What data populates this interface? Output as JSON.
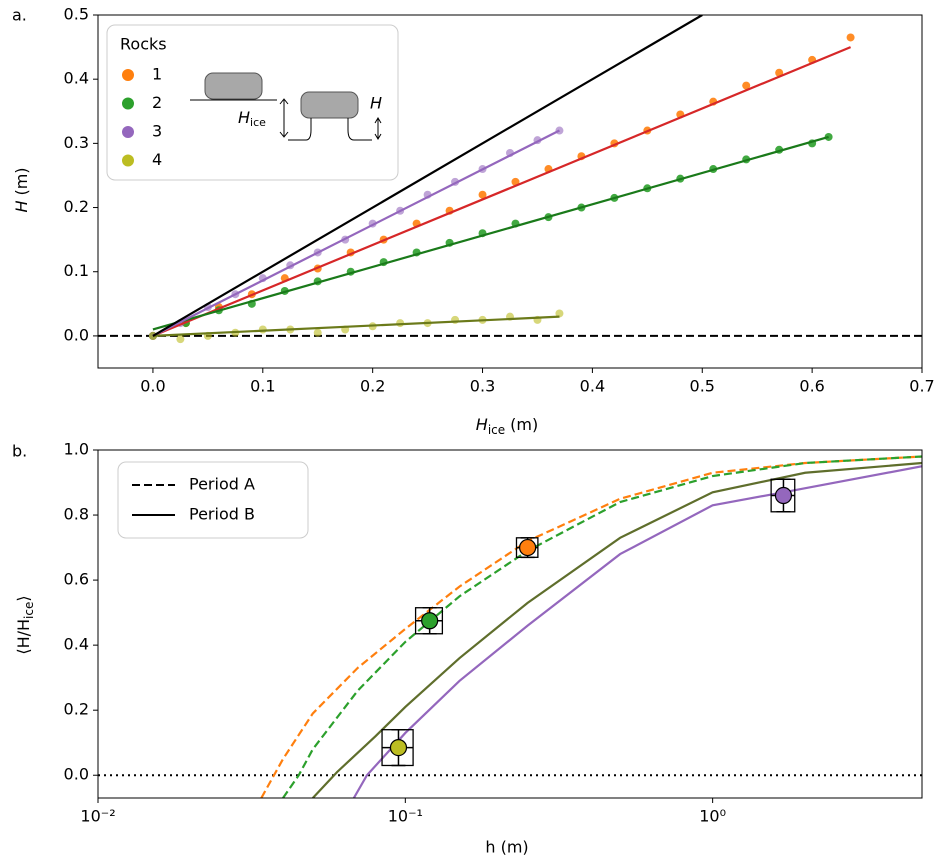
{
  "chart_data": [
    {
      "type": "scatter",
      "panel_label": "a.",
      "xlabel": {
        "main": "H",
        "sub": "ice",
        "unit": "(m)"
      },
      "ylabel": {
        "main": "H",
        "unit": "(m)"
      },
      "xlim": [
        -0.05,
        0.7
      ],
      "ylim": [
        -0.05,
        0.5
      ],
      "xticks": [
        {
          "value": 0,
          "label": "0.0"
        },
        0.1,
        0.2,
        0.3,
        0.4,
        0.5,
        0.6,
        0.7
      ],
      "yticks": [
        {
          "value": 0,
          "label": "0.0"
        },
        0.1,
        0.2,
        0.3,
        0.4,
        0.5
      ],
      "legend_title": "Rocks",
      "legend": "upper left",
      "diagram_labels": {
        "hice_main": "H",
        "hice_sub": "ice",
        "h": "H"
      },
      "series": [
        {
          "name": "1",
          "color": "#ff7f0e",
          "x": [
            0,
            0.03,
            0.06,
            0.09,
            0.12,
            0.15,
            0.18,
            0.21,
            0.24,
            0.27,
            0.3,
            0.33,
            0.36,
            0.39,
            0.42,
            0.45,
            0.48,
            0.51,
            0.54,
            0.57,
            0.6,
            0.635
          ],
          "values": [
            0.0,
            0.02,
            0.045,
            0.065,
            0.09,
            0.105,
            0.13,
            0.15,
            0.175,
            0.195,
            0.22,
            0.24,
            0.26,
            0.28,
            0.3,
            0.32,
            0.345,
            0.365,
            0.39,
            0.41,
            0.43,
            0.465
          ]
        },
        {
          "name": "2",
          "color": "#2ca02c",
          "x": [
            0,
            0.03,
            0.06,
            0.09,
            0.12,
            0.15,
            0.18,
            0.21,
            0.24,
            0.27,
            0.3,
            0.33,
            0.36,
            0.39,
            0.42,
            0.45,
            0.48,
            0.51,
            0.54,
            0.57,
            0.6,
            0.615
          ],
          "values": [
            0.0,
            0.02,
            0.04,
            0.05,
            0.07,
            0.085,
            0.1,
            0.115,
            0.13,
            0.145,
            0.16,
            0.175,
            0.185,
            0.2,
            0.215,
            0.23,
            0.245,
            0.26,
            0.275,
            0.29,
            0.3,
            0.31
          ]
        },
        {
          "name": "3",
          "color": "#9467bd",
          "x": [
            0,
            0.025,
            0.05,
            0.075,
            0.1,
            0.125,
            0.15,
            0.175,
            0.2,
            0.225,
            0.25,
            0.275,
            0.3,
            0.325,
            0.35,
            0.37
          ],
          "values": [
            0.0,
            0.02,
            0.045,
            0.065,
            0.09,
            0.11,
            0.13,
            0.15,
            0.175,
            0.195,
            0.22,
            0.24,
            0.26,
            0.285,
            0.305,
            0.32
          ]
        },
        {
          "name": "4",
          "color": "#bcbd22",
          "x": [
            0,
            0.025,
            0.05,
            0.075,
            0.1,
            0.125,
            0.15,
            0.175,
            0.2,
            0.225,
            0.25,
            0.275,
            0.3,
            0.325,
            0.35,
            0.37
          ],
          "values": [
            0.0,
            -0.005,
            0.0,
            0.005,
            0.01,
            0.01,
            0.005,
            0.01,
            0.015,
            0.02,
            0.02,
            0.025,
            0.025,
            0.03,
            0.025,
            0.035
          ]
        }
      ],
      "fits": [
        {
          "color": "#d62728",
          "x": [
            0,
            0.635
          ],
          "values": [
            0.0,
            0.45
          ]
        },
        {
          "color": "#1a7a1a",
          "x": [
            0,
            0.615
          ],
          "values": [
            0.01,
            0.31
          ]
        },
        {
          "color": "#9467bd",
          "x": [
            0,
            0.37
          ],
          "values": [
            0.0,
            0.32
          ]
        },
        {
          "color": "#6b7a1a",
          "x": [
            0,
            0.37
          ],
          "values": [
            0.0,
            0.03
          ]
        },
        {
          "color": "#000000",
          "x": [
            0,
            0.5
          ],
          "values": [
            0.0,
            0.5
          ]
        }
      ],
      "zero_line": {
        "value": 0,
        "style": "dashed"
      }
    },
    {
      "type": "curves",
      "panel_label": "b.",
      "xscale": "log",
      "xlabel": "h (m)",
      "ylabel": {
        "pre": "⟨H/H",
        "sub": "ice",
        "post": "⟩"
      },
      "xlim": [
        0.01,
        4.8
      ],
      "ylim": [
        -0.07,
        1.0
      ],
      "xticks": [
        {
          "value": 0.01,
          "label": "10⁻²"
        },
        {
          "value": 0.1,
          "label": "10⁻¹"
        },
        {
          "value": 1,
          "label": "10⁰"
        }
      ],
      "yticks": [
        {
          "value": 0,
          "label": "0.0"
        },
        0.2,
        0.4,
        0.6,
        0.8,
        {
          "value": 1,
          "label": "1.0"
        }
      ],
      "legend": "upper left",
      "legend_entries": [
        {
          "label": "Period A",
          "dash": "dashed"
        },
        {
          "label": "Period B",
          "dash": "solid"
        }
      ],
      "curves": [
        {
          "color": "#ff7f0e",
          "dash": "dashed",
          "x": [
            0.034,
            0.04,
            0.05,
            0.07,
            0.1,
            0.15,
            0.25,
            0.5,
            1,
            2,
            4.8
          ],
          "values": [
            -0.07,
            0.05,
            0.19,
            0.33,
            0.45,
            0.58,
            0.72,
            0.85,
            0.93,
            0.96,
            0.98
          ]
        },
        {
          "color": "#2ca02c",
          "dash": "dashed",
          "x": [
            0.04,
            0.045,
            0.05,
            0.07,
            0.1,
            0.15,
            0.25,
            0.5,
            1,
            2,
            4.8
          ],
          "values": [
            -0.07,
            0.0,
            0.08,
            0.26,
            0.41,
            0.55,
            0.69,
            0.84,
            0.92,
            0.96,
            0.98
          ]
        },
        {
          "color": "#5f6e2c",
          "dash": "solid",
          "x": [
            0.05,
            0.06,
            0.08,
            0.1,
            0.15,
            0.25,
            0.5,
            1,
            2,
            4.8
          ],
          "values": [
            -0.07,
            0.01,
            0.12,
            0.21,
            0.36,
            0.53,
            0.73,
            0.87,
            0.93,
            0.96
          ]
        },
        {
          "color": "#9467bd",
          "dash": "solid",
          "x": [
            0.068,
            0.075,
            0.1,
            0.15,
            0.25,
            0.5,
            1,
            1.7,
            4.8
          ],
          "values": [
            -0.07,
            0.0,
            0.13,
            0.29,
            0.46,
            0.68,
            0.83,
            0.87,
            0.95
          ]
        }
      ],
      "points": {
        "colors": [
          "#ff7f0e",
          "#2ca02c",
          "#bcbd22",
          "#9467bd"
        ],
        "x": [
          0.25,
          0.12,
          0.095,
          1.7
        ],
        "values": [
          0.7,
          0.475,
          0.085,
          0.86
        ],
        "x_err": [
          0.02,
          0.012,
          0.011,
          0.15
        ],
        "y_err": [
          0.03,
          0.04,
          0.055,
          0.05
        ]
      },
      "zero_line": {
        "value": 0,
        "style": "dotted"
      }
    }
  ]
}
